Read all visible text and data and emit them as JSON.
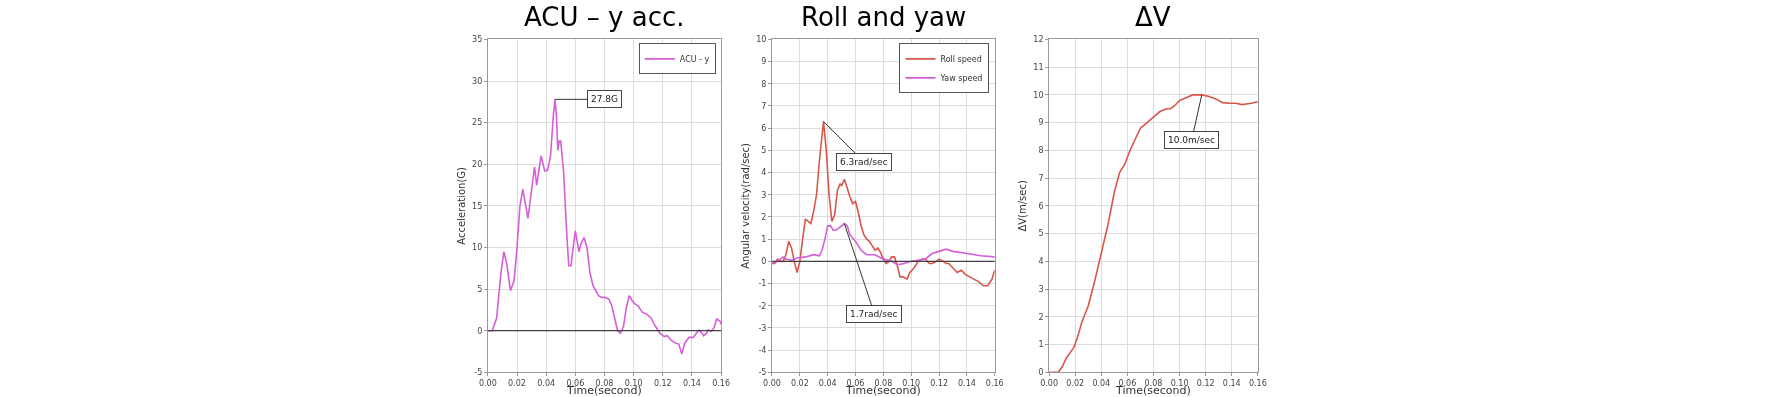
{
  "chart_data": [
    {
      "type": "line",
      "title": "ACU – y acc.",
      "xlabel": "Time(second)",
      "ylabel": "Acceleration(G)",
      "xlim": [
        0,
        0.16
      ],
      "ylim": [
        -5,
        35
      ],
      "xticks": [
        {
          "value": 0,
          "label": "0.00"
        },
        {
          "value": 0.02,
          "label": "0.02"
        },
        {
          "value": 0.04,
          "label": "0.04"
        },
        {
          "value": 0.06,
          "label": "0.06"
        },
        {
          "value": 0.08,
          "label": "0.08"
        },
        {
          "value": 0.1,
          "label": "0.10"
        },
        {
          "value": 0.12,
          "label": "0.12"
        },
        {
          "value": 0.14,
          "label": "0.14"
        },
        {
          "value": 0.16,
          "label": "0.16"
        }
      ],
      "yticks": [
        -5,
        0,
        5,
        10,
        15,
        20,
        25,
        30,
        35
      ],
      "grid": true,
      "legend": "top right",
      "ref_lines": [
        {
          "axis": "y",
          "value": 0,
          "color": "#404040"
        }
      ],
      "annotations": [
        {
          "text": "27.8G",
          "x": 0.046,
          "y": 27.8
        }
      ],
      "series": [
        {
          "name": "ACU - y",
          "color": "#d65ed6",
          "x": [
            0,
            0.003,
            0.006,
            0.009,
            0.011,
            0.013,
            0.0155,
            0.018,
            0.02,
            0.022,
            0.024,
            0.026,
            0.0275,
            0.029,
            0.032,
            0.0335,
            0.0365,
            0.039,
            0.041,
            0.043,
            0.045,
            0.046,
            0.047,
            0.048,
            0.049,
            0.05,
            0.052,
            0.054,
            0.0555,
            0.057,
            0.0585,
            0.06,
            0.0615,
            0.0625,
            0.064,
            0.066,
            0.068,
            0.07,
            0.072,
            0.074,
            0.076,
            0.078,
            0.08,
            0.083,
            0.085,
            0.087,
            0.089,
            0.091,
            0.093,
            0.095,
            0.097,
            0.099,
            0.101,
            0.103,
            0.106,
            0.109,
            0.112,
            0.115,
            0.118,
            0.121,
            0.123,
            0.126,
            0.129,
            0.131,
            0.133,
            0.135,
            0.138,
            0.141,
            0.143,
            0.145,
            0.147,
            0.148,
            0.15,
            0.151,
            0.153,
            0.155,
            0.157,
            0.159,
            0.16
          ],
          "values": [
            0,
            0,
            1.5,
            7,
            9.5,
            8,
            4.8,
            6,
            10,
            15,
            17,
            15,
            13.5,
            15.5,
            19.7,
            17.5,
            21,
            19.2,
            19.3,
            21,
            26,
            27.8,
            26,
            21.7,
            22.8,
            22.8,
            19,
            12,
            7.8,
            7.8,
            10,
            12,
            10.5,
            9.5,
            10.5,
            11.2,
            10,
            7,
            5.5,
            4.8,
            4.2,
            4,
            4,
            3.8,
            3,
            1.5,
            0,
            -0.3,
            0.5,
            2.8,
            4.2,
            3.6,
            3.2,
            3,
            2.2,
            2,
            1.5,
            0.5,
            -0.3,
            -0.7,
            -0.6,
            -1.2,
            -1.5,
            -1.6,
            -2.8,
            -1.5,
            -0.8,
            -0.8,
            -0.3,
            0.1,
            -0.3,
            -0.6,
            -0.3,
            0.1,
            -0.1,
            0.3,
            1.4,
            1.2,
            0.8
          ]
        }
      ]
    },
    {
      "type": "line",
      "title": "Roll and yaw",
      "xlabel": "Time(second)",
      "ylabel": "Angular velocity(rad/sec)",
      "xlim": [
        0,
        0.16
      ],
      "ylim": [
        -5,
        10
      ],
      "xticks": [
        {
          "value": 0,
          "label": "0.00"
        },
        {
          "value": 0.02,
          "label": "0.02"
        },
        {
          "value": 0.04,
          "label": "0.04"
        },
        {
          "value": 0.06,
          "label": "0.06"
        },
        {
          "value": 0.08,
          "label": "0.08"
        },
        {
          "value": 0.1,
          "label": "0.10"
        },
        {
          "value": 0.12,
          "label": "0.12"
        },
        {
          "value": 0.14,
          "label": "0.14"
        },
        {
          "value": 0.16,
          "label": "0.16"
        }
      ],
      "yticks": [
        -5,
        -4,
        -3,
        -2,
        -1,
        0,
        1,
        2,
        3,
        4,
        5,
        6,
        7,
        8,
        9,
        10
      ],
      "grid": true,
      "legend": "top right",
      "ref_lines": [
        {
          "axis": "y",
          "value": 0,
          "color": "#404040"
        }
      ],
      "annotations": [
        {
          "text": "6.3rad/sec",
          "x": 0.037,
          "y": 6.3
        },
        {
          "text": "1.7rad/sec",
          "x": 0.052,
          "y": 1.7
        }
      ],
      "series": [
        {
          "name": "Roll speed",
          "color": "#d9574a",
          "x": [
            0,
            0.002,
            0.004,
            0.006,
            0.008,
            0.01,
            0.012,
            0.014,
            0.016,
            0.018,
            0.02,
            0.022,
            0.024,
            0.026,
            0.028,
            0.03,
            0.032,
            0.034,
            0.037,
            0.039,
            0.041,
            0.043,
            0.045,
            0.047,
            0.049,
            0.05,
            0.052,
            0.054,
            0.056,
            0.058,
            0.06,
            0.062,
            0.064,
            0.066,
            0.068,
            0.07,
            0.072,
            0.074,
            0.076,
            0.078,
            0.08,
            0.082,
            0.084,
            0.086,
            0.088,
            0.09,
            0.092,
            0.094,
            0.097,
            0.099,
            0.102,
            0.105,
            0.108,
            0.11,
            0.113,
            0.115,
            0.118,
            0.12,
            0.123,
            0.125,
            0.127,
            0.13,
            0.133,
            0.136,
            0.139,
            0.142,
            0.145,
            0.148,
            0.152,
            0.155,
            0.158,
            0.16
          ],
          "values": [
            -0.1,
            -0.1,
            0.1,
            0,
            0,
            0.3,
            0.9,
            0.6,
            0,
            -0.5,
            0,
            1,
            1.9,
            1.8,
            1.7,
            2.3,
            3,
            4.5,
            6.3,
            5,
            3,
            1.8,
            2.1,
            3.2,
            3.5,
            3.4,
            3.7,
            3.3,
            2.9,
            2.6,
            2.7,
            2.2,
            1.6,
            1.2,
            1,
            0.9,
            0.7,
            0.5,
            0.6,
            0.4,
            0.1,
            -0.1,
            0,
            0.2,
            0.2,
            -0.2,
            -0.7,
            -0.7,
            -0.8,
            -0.5,
            -0.3,
            0,
            0.1,
            0.1,
            -0.1,
            -0.1,
            0,
            0.1,
            0,
            -0.1,
            -0.1,
            -0.3,
            -0.5,
            -0.4,
            -0.6,
            -0.7,
            -0.8,
            -0.9,
            -1.1,
            -1.1,
            -0.8,
            -0.4
          ]
        },
        {
          "name": "Yaw speed",
          "color": "#d35fd6",
          "x": [
            0,
            0.004,
            0.008,
            0.01,
            0.014,
            0.018,
            0.024,
            0.03,
            0.034,
            0.036,
            0.038,
            0.04,
            0.042,
            0.044,
            0.046,
            0.048,
            0.052,
            0.054,
            0.056,
            0.06,
            0.064,
            0.068,
            0.074,
            0.08,
            0.086,
            0.09,
            0.095,
            0.1,
            0.105,
            0.11,
            0.115,
            0.12,
            0.125,
            0.13,
            0.14,
            0.15,
            0.16
          ],
          "values": [
            -0.1,
            0,
            0.2,
            0.1,
            0.05,
            0.15,
            0.2,
            0.3,
            0.25,
            0.5,
            1,
            1.6,
            1.6,
            1.4,
            1.4,
            1.5,
            1.7,
            1.6,
            1.2,
            0.9,
            0.5,
            0.3,
            0.3,
            0.1,
            0,
            -0.15,
            -0.1,
            0,
            0.05,
            0.1,
            0.35,
            0.45,
            0.55,
            0.45,
            0.35,
            0.25,
            0.2
          ]
        }
      ]
    },
    {
      "type": "line",
      "title": "ΔV",
      "xlabel": "Time(second)",
      "ylabel": "ΔV(m/sec)",
      "xlim": [
        0,
        0.16
      ],
      "ylim": [
        0,
        12
      ],
      "xticks": [
        {
          "value": 0,
          "label": "0.00"
        },
        {
          "value": 0.02,
          "label": "0.02"
        },
        {
          "value": 0.04,
          "label": "0.04"
        },
        {
          "value": 0.06,
          "label": "0.06"
        },
        {
          "value": 0.08,
          "label": "0.08"
        },
        {
          "value": 0.1,
          "label": "0.10"
        },
        {
          "value": 0.12,
          "label": "0.12"
        },
        {
          "value": 0.14,
          "label": "0.14"
        },
        {
          "value": 0.16,
          "label": "0.16"
        }
      ],
      "yticks": [
        0,
        1,
        2,
        3,
        4,
        5,
        6,
        7,
        8,
        9,
        10,
        11,
        12
      ],
      "grid": true,
      "annotations": [
        {
          "text": "10.0m/sec",
          "x": 0.117,
          "y": 10.0
        }
      ],
      "series": [
        {
          "color": "#d9574a",
          "x": [
            0,
            0.007,
            0.01,
            0.013,
            0.016,
            0.019,
            0.022,
            0.025,
            0.03,
            0.035,
            0.04,
            0.045,
            0.05,
            0.054,
            0.058,
            0.062,
            0.066,
            0.07,
            0.075,
            0.08,
            0.085,
            0.09,
            0.093,
            0.096,
            0.1,
            0.105,
            0.11,
            0.117,
            0.122,
            0.128,
            0.133,
            0.138,
            0.143,
            0.148,
            0.155,
            0.16
          ],
          "values": [
            0,
            0,
            0.2,
            0.5,
            0.7,
            0.9,
            1.3,
            1.8,
            2.4,
            3.3,
            4.3,
            5.3,
            6.5,
            7.2,
            7.5,
            8,
            8.4,
            8.8,
            9,
            9.2,
            9.4,
            9.5,
            9.5,
            9.6,
            9.8,
            9.9,
            10,
            10,
            9.95,
            9.85,
            9.72,
            9.7,
            9.7,
            9.65,
            9.7,
            9.75
          ]
        }
      ]
    }
  ]
}
